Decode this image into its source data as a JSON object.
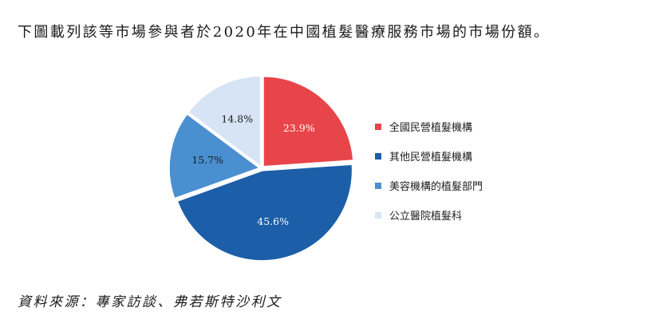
{
  "caption": "下圖載列該等市場參與者於2020年在中國植髮醫療服務市場的市場份額。",
  "source": "資料來源：專家訪談、弗若斯特沙利文",
  "chart_data": {
    "type": "pie",
    "title": "",
    "legend_position": "right",
    "slices": [
      {
        "label": "全國民營植髮機構",
        "value": 23.9,
        "display": "23.9%",
        "color": "#e8454a",
        "text_color": "#ffffff"
      },
      {
        "label": "其他民營植髮機構",
        "value": 45.6,
        "display": "45.6%",
        "color": "#1c5ea8",
        "text_color": "#ffffff"
      },
      {
        "label": "美容機構的植髮部門",
        "value": 15.7,
        "display": "15.7%",
        "color": "#4a8fd0",
        "text_color": "#1a1a1a"
      },
      {
        "label": "公立醫院植髮科",
        "value": 14.8,
        "display": "14.8%",
        "color": "#d6e4f5",
        "text_color": "#1a1a1a"
      }
    ]
  }
}
